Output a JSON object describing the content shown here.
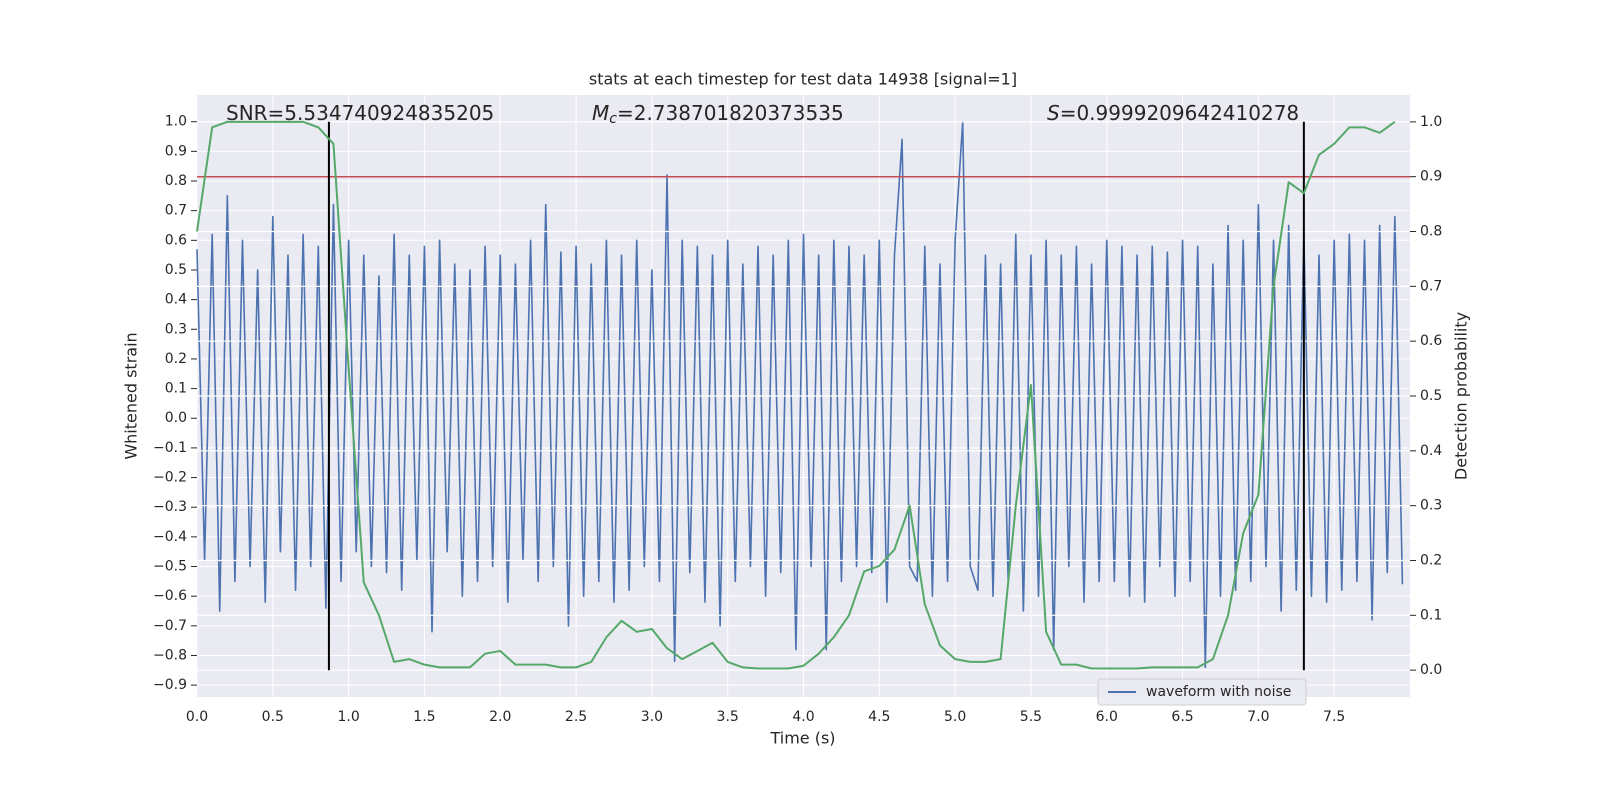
{
  "chart_data": {
    "type": "line",
    "title": "stats at each timestep for test data 14938 [signal=1]",
    "xlabel": "Time (s)",
    "ylabel": "Whitened strain",
    "y2label": "Detection probability",
    "background": "#eaeaf2",
    "grid": true,
    "legend_loc": "lower right",
    "xlim": [
      0,
      8.0
    ],
    "ylim": [
      -0.94,
      1.09
    ],
    "y2lim": [
      -0.049,
      1.049
    ],
    "xticks": [
      {
        "value": 0,
        "label": "0.0"
      },
      {
        "value": 0.5,
        "label": "0.5"
      },
      {
        "value": 1,
        "label": "1.0"
      },
      {
        "value": 1.5,
        "label": "1.5"
      },
      {
        "value": 2,
        "label": "2.0"
      },
      {
        "value": 2.5,
        "label": "2.5"
      },
      {
        "value": 3,
        "label": "3.0"
      },
      {
        "value": 3.5,
        "label": "3.5"
      },
      {
        "value": 4,
        "label": "4.0"
      },
      {
        "value": 4.5,
        "label": "4.5"
      },
      {
        "value": 5,
        "label": "5.0"
      },
      {
        "value": 5.5,
        "label": "5.5"
      },
      {
        "value": 6,
        "label": "6.0"
      },
      {
        "value": 6.5,
        "label": "6.5"
      },
      {
        "value": 7,
        "label": "7.0"
      },
      {
        "value": 7.5,
        "label": "7.5"
      }
    ],
    "yticks": [
      {
        "value": -0.9,
        "label": "−0.9"
      },
      {
        "value": -0.8,
        "label": "−0.8"
      },
      {
        "value": -0.7,
        "label": "−0.7"
      },
      {
        "value": -0.6,
        "label": "−0.6"
      },
      {
        "value": -0.5,
        "label": "−0.5"
      },
      {
        "value": -0.4,
        "label": "−0.4"
      },
      {
        "value": -0.3,
        "label": "−0.3"
      },
      {
        "value": -0.2,
        "label": "−0.2"
      },
      {
        "value": -0.1,
        "label": "−0.1"
      },
      {
        "value": 0,
        "label": "0.0"
      },
      {
        "value": 0.1,
        "label": "0.1"
      },
      {
        "value": 0.2,
        "label": "0.2"
      },
      {
        "value": 0.3,
        "label": "0.3"
      },
      {
        "value": 0.4,
        "label": "0.4"
      },
      {
        "value": 0.5,
        "label": "0.5"
      },
      {
        "value": 0.6,
        "label": "0.6"
      },
      {
        "value": 0.7,
        "label": "0.7"
      },
      {
        "value": 0.8,
        "label": "0.8"
      },
      {
        "value": 0.9,
        "label": "0.9"
      },
      {
        "value": 1,
        "label": "1.0"
      }
    ],
    "y2ticks": [
      {
        "value": 0,
        "label": "0.0"
      },
      {
        "value": 0.1,
        "label": "0.1"
      },
      {
        "value": 0.2,
        "label": "0.2"
      },
      {
        "value": 0.3,
        "label": "0.3"
      },
      {
        "value": 0.4,
        "label": "0.4"
      },
      {
        "value": 0.5,
        "label": "0.5"
      },
      {
        "value": 0.6,
        "label": "0.6"
      },
      {
        "value": 0.7,
        "label": "0.7"
      },
      {
        "value": 0.8,
        "label": "0.8"
      },
      {
        "value": 0.9,
        "label": "0.9"
      },
      {
        "value": 1,
        "label": "1.0"
      }
    ],
    "annotations": [
      {
        "text": "SNR=5.534740924835205"
      },
      {
        "italic": "M",
        "sub": "c",
        "text": "=2.738701820373535"
      },
      {
        "italic": "S",
        "text": "=0.9999209642410278"
      }
    ],
    "threshold": {
      "value": 0.9,
      "axis": "y2",
      "color": "#c44e52"
    },
    "vlines": {
      "x": [
        0.87,
        7.3
      ],
      "y_range": [
        -0.85,
        1.0
      ],
      "color": "#000000"
    },
    "series": [
      {
        "name": "waveform with noise",
        "color": "#4c72b0",
        "x": [
          0,
          0.05,
          0.1,
          0.15,
          0.2,
          0.25,
          0.3,
          0.35,
          0.4,
          0.45,
          0.5,
          0.55,
          0.6,
          0.65,
          0.7,
          0.75,
          0.8,
          0.85,
          0.9,
          0.95,
          1,
          1.05,
          1.1,
          1.15,
          1.2,
          1.25,
          1.3,
          1.35,
          1.4,
          1.45,
          1.5,
          1.55,
          1.6,
          1.65,
          1.7,
          1.75,
          1.8,
          1.85,
          1.9,
          1.95,
          2,
          2.05,
          2.1,
          2.15,
          2.2,
          2.25,
          2.3,
          2.35,
          2.4,
          2.45,
          2.5,
          2.55,
          2.6,
          2.65,
          2.7,
          2.75,
          2.8,
          2.85,
          2.9,
          2.95,
          3,
          3.05,
          3.1,
          3.15,
          3.2,
          3.25,
          3.3,
          3.35,
          3.4,
          3.45,
          3.5,
          3.55,
          3.6,
          3.65,
          3.7,
          3.75,
          3.8,
          3.85,
          3.9,
          3.95,
          4,
          4.05,
          4.1,
          4.15,
          4.2,
          4.25,
          4.3,
          4.35,
          4.4,
          4.45,
          4.5,
          4.55,
          4.6,
          4.65,
          4.7,
          4.75,
          4.8,
          4.85,
          4.9,
          4.95,
          5,
          5.05,
          5.1,
          5.15,
          5.2,
          5.25,
          5.3,
          5.35,
          5.4,
          5.45,
          5.5,
          5.55,
          5.6,
          5.65,
          5.7,
          5.75,
          5.8,
          5.85,
          5.9,
          5.95,
          6,
          6.05,
          6.1,
          6.15,
          6.2,
          6.25,
          6.3,
          6.35,
          6.4,
          6.45,
          6.5,
          6.55,
          6.6,
          6.65,
          6.7,
          6.75,
          6.8,
          6.85,
          6.9,
          6.95,
          7,
          7.05,
          7.1,
          7.15,
          7.2,
          7.25,
          7.3,
          7.35,
          7.4,
          7.45,
          7.5,
          7.55,
          7.6,
          7.65,
          7.7,
          7.75,
          7.8,
          7.85,
          7.9,
          7.95
        ],
        "values": [
          0.57,
          -0.48,
          0.62,
          -0.65,
          0.75,
          -0.55,
          0.6,
          -0.5,
          0.5,
          -0.62,
          0.68,
          -0.45,
          0.55,
          -0.58,
          0.62,
          -0.5,
          0.58,
          -0.64,
          0.72,
          -0.55,
          0.6,
          -0.45,
          0.55,
          -0.5,
          0.48,
          -0.52,
          0.62,
          -0.58,
          0.55,
          -0.48,
          0.58,
          -0.72,
          0.6,
          -0.45,
          0.52,
          -0.6,
          0.5,
          -0.55,
          0.58,
          -0.5,
          0.55,
          -0.62,
          0.52,
          -0.48,
          0.6,
          -0.55,
          0.72,
          -0.5,
          0.56,
          -0.7,
          0.58,
          -0.6,
          0.52,
          -0.55,
          0.6,
          -0.62,
          0.55,
          -0.58,
          0.6,
          -0.5,
          0.5,
          -0.55,
          0.82,
          -0.82,
          0.6,
          -0.52,
          0.58,
          -0.62,
          0.55,
          -0.7,
          0.6,
          -0.55,
          0.52,
          -0.5,
          0.58,
          -0.6,
          0.55,
          -0.52,
          0.6,
          -0.78,
          0.62,
          -0.5,
          0.55,
          -0.78,
          0.6,
          -0.55,
          0.58,
          -0.5,
          0.55,
          -0.52,
          0.6,
          -0.62,
          0.55,
          0.94,
          -0.5,
          -0.55,
          0.58,
          -0.6,
          0.52,
          -0.55,
          0.6,
          1.0,
          -0.5,
          -0.58,
          0.55,
          -0.6,
          0.52,
          -0.55,
          0.62,
          -0.65,
          0.55,
          -0.6,
          0.6,
          -0.78,
          0.55,
          -0.5,
          0.58,
          -0.62,
          0.52,
          -0.55,
          0.6,
          -0.55,
          0.58,
          -0.6,
          0.55,
          -0.62,
          0.58,
          -0.5,
          0.56,
          -0.6,
          0.6,
          -0.55,
          0.58,
          -0.84,
          0.52,
          -0.6,
          0.65,
          -0.58,
          0.6,
          -0.55,
          0.72,
          -0.5,
          0.6,
          -0.65,
          0.65,
          -0.58,
          0.62,
          -0.6,
          0.55,
          -0.62,
          0.6,
          -0.58,
          0.62,
          -0.55,
          0.6,
          -0.68,
          0.65,
          -0.52,
          0.68,
          -0.56
        ]
      },
      {
        "axis": "y2",
        "color": "#55a868",
        "x": [
          0,
          0.1,
          0.2,
          0.3,
          0.4,
          0.5,
          0.6,
          0.7,
          0.8,
          0.9,
          1,
          1.1,
          1.2,
          1.3,
          1.4,
          1.5,
          1.6,
          1.7,
          1.8,
          1.9,
          2,
          2.1,
          2.2,
          2.3,
          2.4,
          2.5,
          2.6,
          2.7,
          2.8,
          2.9,
          3,
          3.1,
          3.2,
          3.3,
          3.4,
          3.5,
          3.6,
          3.7,
          3.8,
          3.9,
          4,
          4.1,
          4.2,
          4.3,
          4.4,
          4.5,
          4.6,
          4.7,
          4.8,
          4.9,
          5,
          5.1,
          5.2,
          5.3,
          5.4,
          5.5,
          5.6,
          5.7,
          5.8,
          5.9,
          6,
          6.1,
          6.2,
          6.3,
          6.4,
          6.5,
          6.6,
          6.7,
          6.8,
          6.9,
          7,
          7.1,
          7.2,
          7.3,
          7.4,
          7.5,
          7.6,
          7.7,
          7.8,
          7.9
        ],
        "values": [
          0.8,
          0.99,
          1.0,
          1.0,
          1.0,
          1.0,
          1.0,
          1.0,
          0.99,
          0.96,
          0.55,
          0.16,
          0.1,
          0.015,
          0.02,
          0.01,
          0.005,
          0.005,
          0.005,
          0.03,
          0.035,
          0.01,
          0.01,
          0.01,
          0.005,
          0.005,
          0.015,
          0.06,
          0.09,
          0.07,
          0.075,
          0.04,
          0.02,
          0.035,
          0.05,
          0.015,
          0.005,
          0.003,
          0.003,
          0.003,
          0.008,
          0.03,
          0.06,
          0.1,
          0.18,
          0.19,
          0.22,
          0.3,
          0.12,
          0.045,
          0.02,
          0.015,
          0.015,
          0.02,
          0.3,
          0.52,
          0.07,
          0.01,
          0.01,
          0.003,
          0.003,
          0.003,
          0.003,
          0.005,
          0.005,
          0.005,
          0.005,
          0.02,
          0.1,
          0.25,
          0.32,
          0.7,
          0.89,
          0.87,
          0.94,
          0.96,
          0.99,
          0.99,
          0.98,
          1.0
        ]
      }
    ]
  }
}
